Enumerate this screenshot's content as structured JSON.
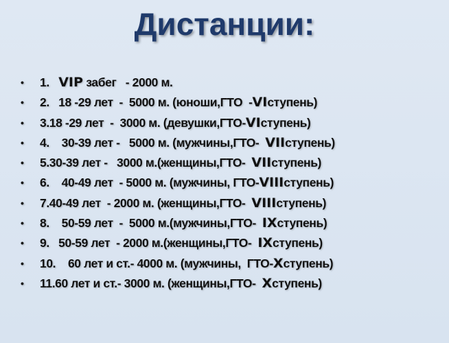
{
  "title": "Дистанции:",
  "items": [
    {
      "a": "1.   ",
      "b": "VIP",
      "c": " забег   - 2000 м."
    },
    {
      "a": "2.   18 -29 лет  -  5000 м. (юноши,ГТО  -",
      "b": "VI",
      "c": "ступень)"
    },
    {
      "a": "3.18 -29 лет  -  3000 м. (девушки,ГТО-",
      "b": "VI",
      "c": "ступень)"
    },
    {
      "a": "4.    30-39 лет -   5000 м. (мужчины,ГТО-  ",
      "b": "VII",
      "c": "ступень)"
    },
    {
      "a": "5.30-39 лет -   3000 м.(женщины,ГТО-  ",
      "b": "VII",
      "c": "ступень)"
    },
    {
      "a": "6.    40-49 лет  - 5000 м. (мужчины, ГТО-",
      "b": "VIII",
      "c": "ступень)"
    },
    {
      "a": "7.40-49 лет  - 2000 м. (женщины,ГТО-  ",
      "b": "VIII",
      "c": "ступень)"
    },
    {
      "a": "8.    50-59 лет  -  5000 м.(мужчины,ГТО-  ",
      "b": "IX",
      "c": "ступень)"
    },
    {
      "a": "9.   50-59 лет  - 2000 м.(женщины,ГТО-  ",
      "b": "IX",
      "c": "ступень)"
    },
    {
      "a": "10.    60 лет и ст.- 4000 м. (мужчины,  ГТО-",
      "b": "X",
      "c": "ступень)"
    },
    {
      "a": "11.60 лет и ст.- 3000 м. (женщины,ГТО-  ",
      "b": "X",
      "c": "ступень)"
    }
  ]
}
